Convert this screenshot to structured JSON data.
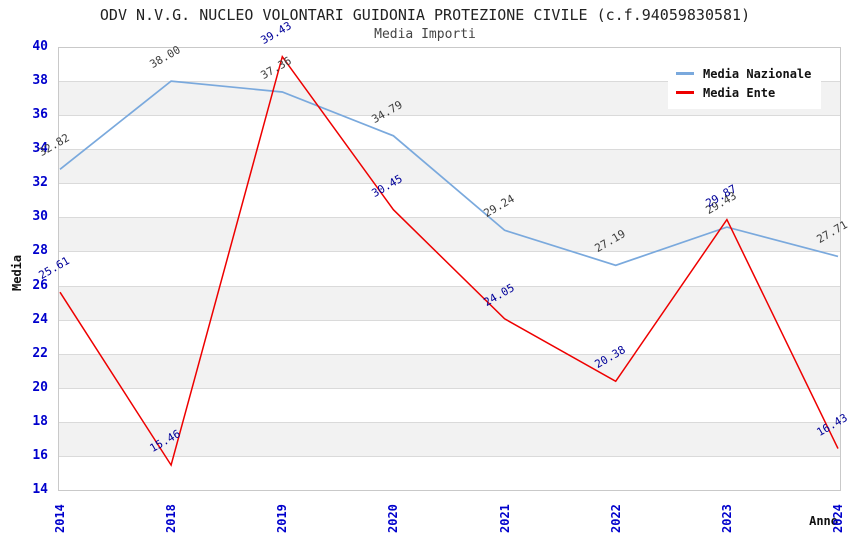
{
  "title": "ODV N.V.G. NUCLEO VOLONTARI GUIDONIA PROTEZIONE CIVILE (c.f.94059830581)",
  "subtitle": "Media Importi",
  "legend": {
    "items": [
      {
        "label": "Media Nazionale",
        "color": "#7aa9dd"
      },
      {
        "label": "Media Ente",
        "color": "#ee0000"
      }
    ]
  },
  "colors": {
    "nazionale_line": "#7aa9dd",
    "ente_line": "#ee0000",
    "tick_label": "#0000cc",
    "nazionale_point_label": "#3d3d3d",
    "ente_point_label": "#000099",
    "band_gray": "#f2f2f2",
    "gridline": "#dadada"
  },
  "chart_data": {
    "type": "line",
    "x": [
      "2014",
      "2018",
      "2019",
      "2020",
      "2021",
      "2022",
      "2023",
      "2024"
    ],
    "series": [
      {
        "name": "Media Nazionale",
        "values": [
          32.82,
          38.0,
          37.36,
          34.79,
          29.24,
          27.19,
          29.43,
          27.71
        ]
      },
      {
        "name": "Media Ente",
        "values": [
          25.61,
          15.46,
          39.43,
          30.45,
          24.05,
          20.38,
          29.87,
          16.43
        ]
      }
    ],
    "title": "ODV N.V.G. NUCLEO VOLONTARI GUIDONIA PROTEZIONE CIVILE (c.f.94059830581)",
    "subtitle": "Media Importi",
    "xlabel": "Anno",
    "ylabel": "Media",
    "ylim": [
      14,
      40
    ],
    "ytick_step": 2,
    "grid": true,
    "band_stripes": true,
    "legend_position": "top-right",
    "point_labels_decimals": 2
  }
}
